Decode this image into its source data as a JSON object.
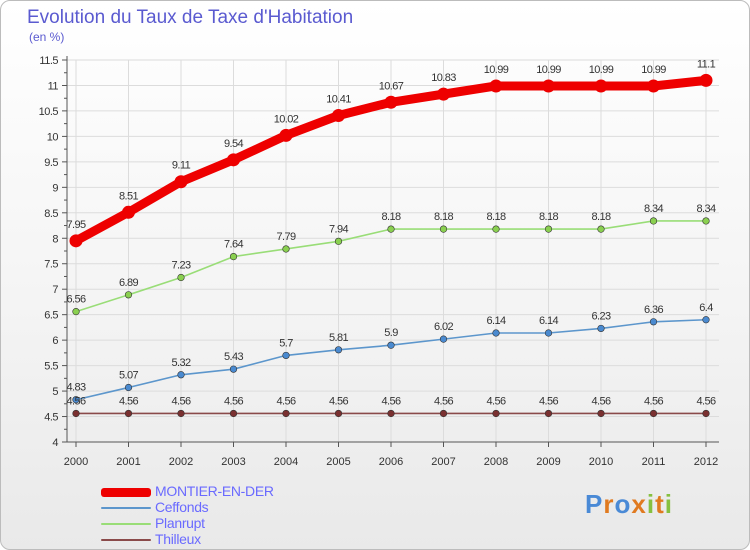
{
  "title": "Evolution du Taux de Taxe d'Habitation",
  "unit_label": "(en %)",
  "logo_text": "Proxiti",
  "colors": {
    "title": "#5a5ad0",
    "grid": "#dcdcdc",
    "axis": "#555555"
  },
  "chart_data": {
    "type": "line",
    "categories": [
      "2000",
      "2001",
      "2002",
      "2003",
      "2004",
      "2005",
      "2006",
      "2007",
      "2008",
      "2009",
      "2010",
      "2011",
      "2012"
    ],
    "ylim": [
      4,
      11.5
    ],
    "yticks": [
      4,
      4.5,
      5,
      5.5,
      6,
      6.5,
      7,
      7.5,
      8,
      8.5,
      9,
      9.5,
      10,
      10.5,
      11,
      11.5
    ],
    "grid": true,
    "legend_position": "bottom-left",
    "series": [
      {
        "name": "MONTIER-EN-DER",
        "color": "#ee0000",
        "point_color": "#ee0000",
        "bold": true,
        "values": [
          7.95,
          8.51,
          9.11,
          9.54,
          10.02,
          10.41,
          10.67,
          10.83,
          10.99,
          10.99,
          10.99,
          10.99,
          11.1
        ],
        "labels": [
          "7.95",
          "8.51",
          "9.11",
          "9.54",
          "10.02",
          "10.41",
          "10.67",
          "10.83",
          "10.99",
          "10.99",
          "10.99",
          "10.99",
          "11.1"
        ]
      },
      {
        "name": "Ceffonds",
        "color": "#5c96cc",
        "point_color": "#4a8ad0",
        "bold": false,
        "values": [
          4.83,
          5.07,
          5.32,
          5.43,
          5.7,
          5.81,
          5.9,
          6.02,
          6.14,
          6.14,
          6.23,
          6.36,
          6.4
        ],
        "labels": [
          "4.83",
          "5.07",
          "5.32",
          "5.43",
          "5.7",
          "5.81",
          "5.9",
          "6.02",
          "6.14",
          "6.14",
          "6.23",
          "6.36",
          "6.4"
        ]
      },
      {
        "name": "Planrupt",
        "color": "#99dd77",
        "point_color": "#8ad050",
        "bold": false,
        "values": [
          6.56,
          6.89,
          7.23,
          7.64,
          7.79,
          7.94,
          8.18,
          8.18,
          8.18,
          8.18,
          8.18,
          8.34,
          8.34
        ],
        "labels": [
          "6.56",
          "6.89",
          "7.23",
          "7.64",
          "7.79",
          "7.94",
          "8.18",
          "8.18",
          "8.18",
          "8.18",
          "8.18",
          "8.34",
          "8.34"
        ]
      },
      {
        "name": "Thilleux",
        "color": "#8a4a4a",
        "point_color": "#7a3030",
        "bold": false,
        "values": [
          4.56,
          4.56,
          4.56,
          4.56,
          4.56,
          4.56,
          4.56,
          4.56,
          4.56,
          4.56,
          4.56,
          4.56,
          4.56
        ],
        "labels": [
          "4.56",
          "4.56",
          "4.56",
          "4.56",
          "4.56",
          "4.56",
          "4.56",
          "4.56",
          "4.56",
          "4.56",
          "4.56",
          "4.56",
          "4.56"
        ]
      }
    ]
  }
}
